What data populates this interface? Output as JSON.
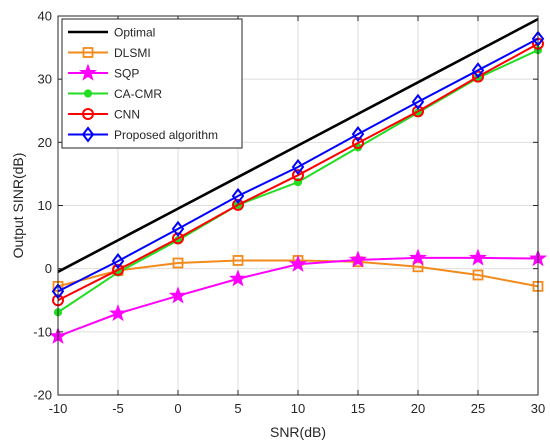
{
  "chart_data": {
    "type": "line",
    "xlabel": "SNR(dB)",
    "ylabel": "Output SINR(dB)",
    "x": [
      -10,
      -5,
      0,
      5,
      10,
      15,
      20,
      25,
      30
    ],
    "xlim": [
      -10,
      30
    ],
    "ylim": [
      -20,
      40
    ],
    "xticks": [
      "-10",
      "-5",
      "0",
      "5",
      "10",
      "15",
      "20",
      "25",
      "30"
    ],
    "yticks": [
      "-20",
      "-10",
      "0",
      "10",
      "20",
      "30",
      "40"
    ],
    "grid": true,
    "legend_position": "top-left",
    "series": [
      {
        "name": "Optimal",
        "color": "#000000",
        "marker": "none",
        "values": [
          -0.5,
          4.5,
          9.5,
          14.5,
          19.5,
          24.5,
          29.5,
          34.5,
          39.5
        ]
      },
      {
        "name": "DLSMI",
        "color": "#f28a1c",
        "marker": "square",
        "values": [
          -2.8,
          -0.3,
          0.9,
          1.3,
          1.3,
          1.1,
          0.3,
          -1.0,
          -2.8
        ]
      },
      {
        "name": "SQP",
        "color": "#ff00ff",
        "marker": "star",
        "values": [
          -10.7,
          -7.1,
          -4.3,
          -1.6,
          0.7,
          1.4,
          1.7,
          1.7,
          1.6
        ]
      },
      {
        "name": "CA-CMR",
        "color": "#22dd22",
        "marker": "dot",
        "values": [
          -6.9,
          -0.6,
          4.5,
          10.1,
          13.7,
          19.2,
          24.7,
          30.2,
          34.6
        ]
      },
      {
        "name": "CNN",
        "color": "#ff0000",
        "marker": "circle",
        "values": [
          -5.0,
          -0.2,
          4.8,
          10.1,
          14.8,
          19.9,
          24.9,
          30.4,
          35.6
        ]
      },
      {
        "name": "Proposed algorithm",
        "color": "#0000ff",
        "marker": "diamond",
        "values": [
          -3.6,
          1.2,
          6.3,
          11.5,
          16.1,
          21.3,
          26.4,
          31.4,
          36.4
        ]
      }
    ]
  }
}
